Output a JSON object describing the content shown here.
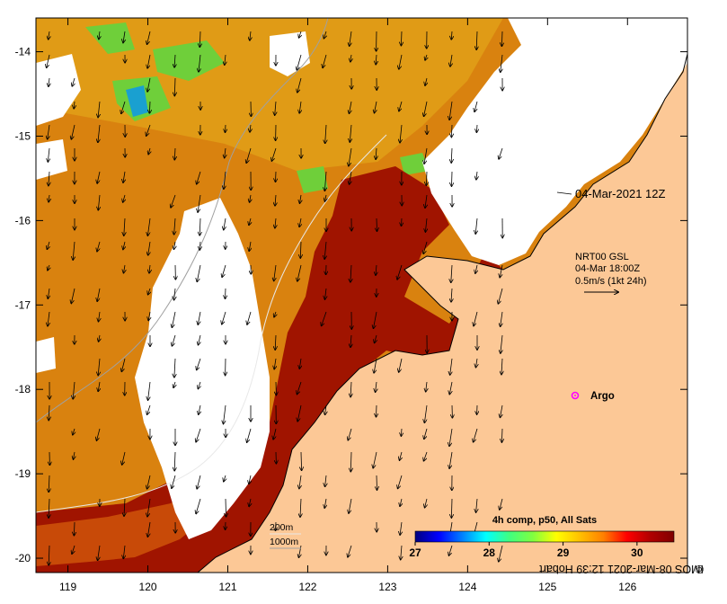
{
  "timestamp": "04-Mar-2021 12Z",
  "currents": {
    "product": "NRT00 GSL",
    "time": "04-Mar 18:00Z",
    "scale_label": "0.5m/s (1kt 24h)"
  },
  "argo_label": "Argo",
  "credit": "IMOS 08-Mar-2021 12:39 Hobart",
  "credit_symbol": "©",
  "depth_contours": {
    "shallow": "200m",
    "deep": "1000m"
  },
  "colorbar": {
    "title": "4h comp, p50, All Sats",
    "min": 27,
    "max": 30.5,
    "ticks": [
      "27",
      "28",
      "29",
      "30"
    ],
    "tick_values": [
      27,
      28,
      29,
      30
    ],
    "colors": [
      "#00007f",
      "#0000ff",
      "#0080ff",
      "#00ffff",
      "#40ff80",
      "#80ff40",
      "#ffff00",
      "#ffc000",
      "#ff8000",
      "#ff0000",
      "#b00000",
      "#800000"
    ]
  },
  "axes": {
    "lon_ticks": [
      "119",
      "120",
      "121",
      "122",
      "123",
      "124",
      "125",
      "126"
    ],
    "lon_values": [
      119,
      120,
      121,
      122,
      123,
      124,
      125,
      126
    ],
    "lat_ticks": [
      "-14",
      "-15",
      "-16",
      "-17",
      "-18",
      "-19",
      "-20"
    ],
    "lat_values": [
      -14,
      -15,
      -16,
      -17,
      -18,
      -19,
      -20
    ],
    "lon_range": [
      118.6,
      126.75
    ],
    "lat_range": [
      -20.17,
      -13.6
    ]
  },
  "colors": {
    "land": "#fcc896",
    "warm_sst": "#a01400",
    "mid_sst": "#d2640a",
    "cool_sst": "#e6a014",
    "cloud": "#ffffff",
    "argo": "#ff00ff"
  }
}
